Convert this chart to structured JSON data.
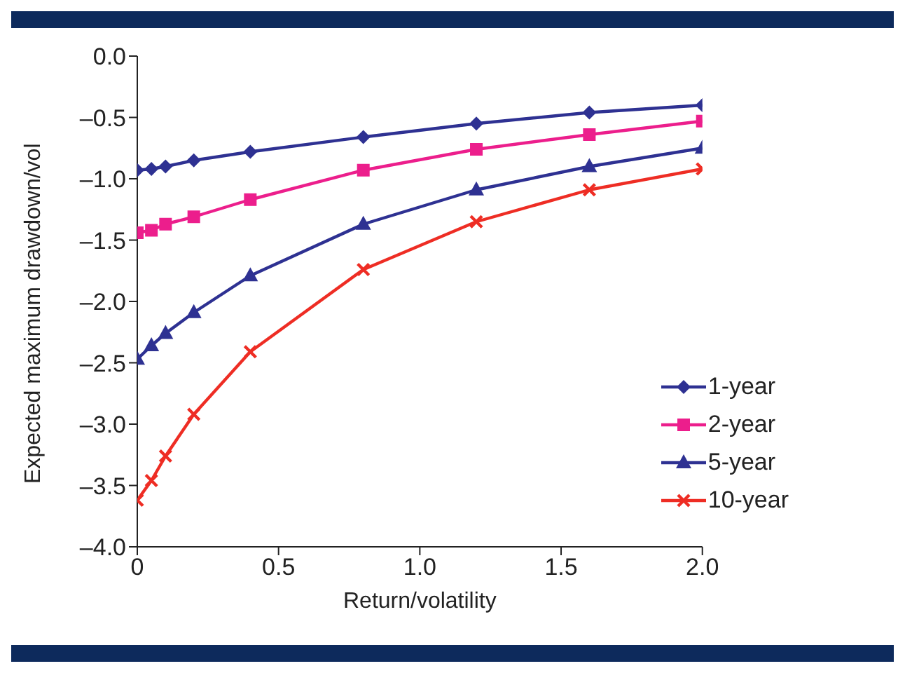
{
  "chart_data": {
    "type": "line",
    "xlabel": "Return/volatility",
    "ylabel": "Expected maximum drawdown/vol",
    "x": [
      0,
      0.05,
      0.1,
      0.2,
      0.4,
      0.8,
      1.2,
      1.6,
      2.0
    ],
    "series": [
      {
        "name": "1-year",
        "color": "#2e3192",
        "marker": "diamond",
        "values": [
          -0.93,
          -0.92,
          -0.9,
          -0.85,
          -0.78,
          -0.66,
          -0.55,
          -0.46,
          -0.4
        ]
      },
      {
        "name": "2-year",
        "color": "#ec1e8c",
        "marker": "square",
        "values": [
          -1.44,
          -1.42,
          -1.37,
          -1.31,
          -1.17,
          -0.93,
          -0.76,
          -0.64,
          -0.53
        ]
      },
      {
        "name": "5-year",
        "color": "#2e3192",
        "marker": "triangle",
        "values": [
          -2.47,
          -2.36,
          -2.26,
          -2.09,
          -1.79,
          -1.37,
          -1.09,
          -0.9,
          -0.75
        ]
      },
      {
        "name": "10-year",
        "color": "#ee2d24",
        "marker": "cross",
        "values": [
          -3.62,
          -3.46,
          -3.26,
          -2.92,
          -2.41,
          -1.74,
          -1.35,
          -1.09,
          -0.92
        ]
      }
    ],
    "xlim": [
      0,
      2.0
    ],
    "xticks": [
      {
        "value": 0,
        "label": "0"
      },
      {
        "value": 0.5,
        "label": "0.5"
      },
      {
        "value": 1,
        "label": "1.0"
      },
      {
        "value": 1.5,
        "label": "1.5"
      },
      {
        "value": 2,
        "label": "2.0"
      }
    ],
    "ylim": [
      -4.0,
      0.0
    ],
    "yticks": [
      {
        "value": 0,
        "label": "0.0"
      },
      {
        "value": -0.5,
        "label": "–0.5"
      },
      {
        "value": -1,
        "label": "–1.0"
      },
      {
        "value": -1.5,
        "label": "–1.5"
      },
      {
        "value": -2,
        "label": "–2.0"
      },
      {
        "value": -2.5,
        "label": "–2.5"
      },
      {
        "value": -3,
        "label": "–3.0"
      },
      {
        "value": -3.5,
        "label": "–3.5"
      },
      {
        "value": -4,
        "label": "–4.0"
      }
    ],
    "grid": false,
    "legend": "bottom right",
    "line_style": "solid"
  }
}
